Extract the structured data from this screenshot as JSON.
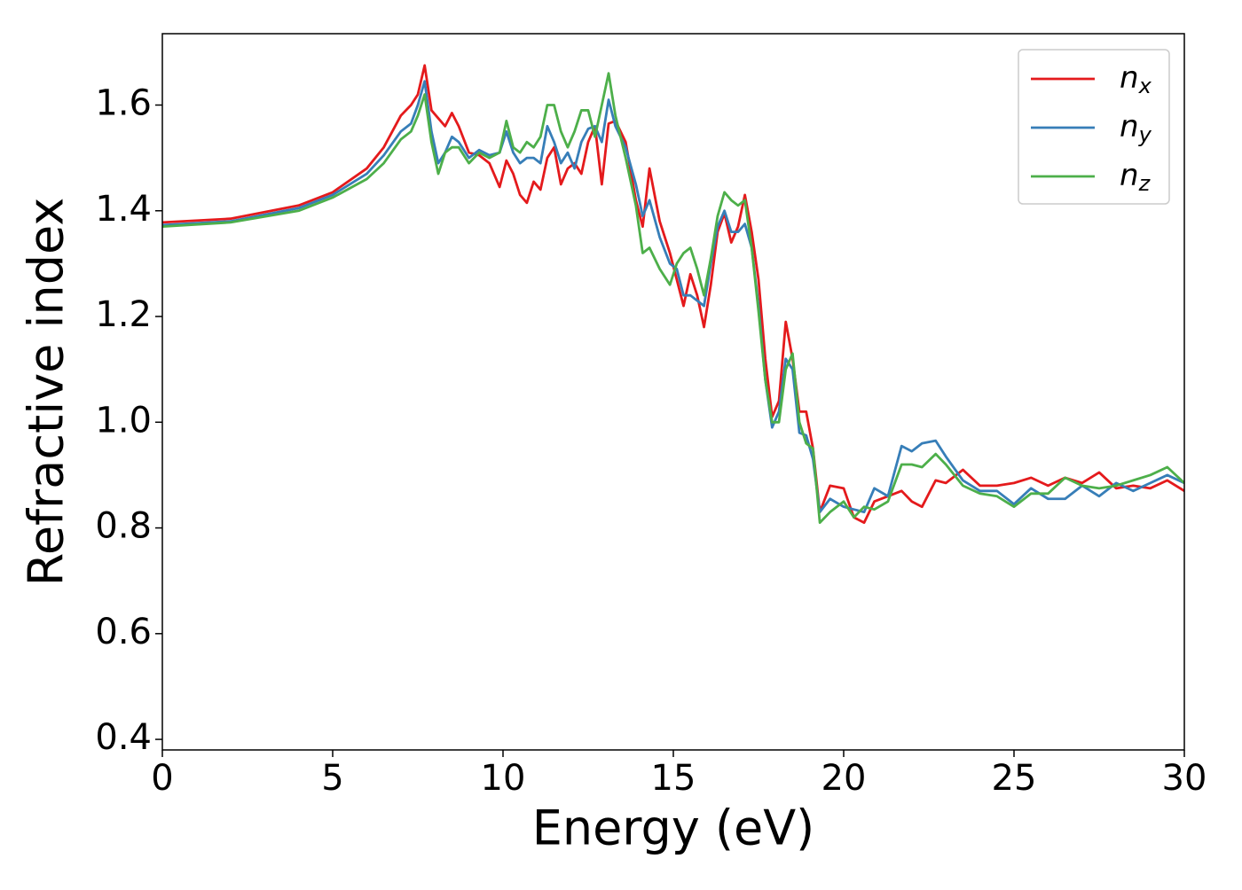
{
  "chart_data": {
    "type": "line",
    "xlabel": "Energy (eV)",
    "ylabel": "Refractive index",
    "x": [
      0,
      2,
      4,
      5,
      6,
      6.5,
      7,
      7.3,
      7.5,
      7.7,
      7.9,
      8.1,
      8.3,
      8.5,
      8.7,
      9,
      9.3,
      9.6,
      9.9,
      10.1,
      10.3,
      10.5,
      10.7,
      10.9,
      11.1,
      11.3,
      11.5,
      11.7,
      11.9,
      12.1,
      12.3,
      12.5,
      12.7,
      12.9,
      13.1,
      13.3,
      13.6,
      13.9,
      14.1,
      14.3,
      14.6,
      14.9,
      15.1,
      15.3,
      15.5,
      15.7,
      15.9,
      16.1,
      16.3,
      16.5,
      16.7,
      16.9,
      17.1,
      17.3,
      17.5,
      17.7,
      17.9,
      18.1,
      18.3,
      18.5,
      18.7,
      18.9,
      19.1,
      19.3,
      19.6,
      20,
      20.3,
      20.6,
      20.9,
      21.3,
      21.7,
      22,
      22.3,
      22.7,
      23,
      23.5,
      24,
      24.5,
      25,
      25.5,
      26,
      26.5,
      27,
      27.5,
      28,
      28.5,
      29,
      29.5,
      30
    ],
    "series": [
      {
        "name": "nx",
        "color": "#e41a1c",
        "values": [
          1.378,
          1.385,
          1.41,
          1.435,
          1.48,
          1.52,
          1.58,
          1.6,
          1.62,
          1.675,
          1.59,
          1.575,
          1.56,
          1.585,
          1.56,
          1.51,
          1.505,
          1.49,
          1.445,
          1.495,
          1.47,
          1.43,
          1.415,
          1.455,
          1.44,
          1.5,
          1.52,
          1.45,
          1.48,
          1.49,
          1.47,
          1.53,
          1.56,
          1.45,
          1.565,
          1.57,
          1.53,
          1.42,
          1.37,
          1.48,
          1.38,
          1.32,
          1.27,
          1.22,
          1.28,
          1.24,
          1.18,
          1.26,
          1.36,
          1.395,
          1.34,
          1.37,
          1.43,
          1.36,
          1.27,
          1.12,
          1.01,
          1.04,
          1.19,
          1.12,
          1.02,
          1.02,
          0.95,
          0.83,
          0.88,
          0.875,
          0.82,
          0.81,
          0.85,
          0.86,
          0.87,
          0.85,
          0.84,
          0.89,
          0.885,
          0.91,
          0.88,
          0.88,
          0.885,
          0.895,
          0.88,
          0.895,
          0.885,
          0.905,
          0.875,
          0.88,
          0.875,
          0.89,
          0.87
        ]
      },
      {
        "name": "ny",
        "color": "#377eb8",
        "values": [
          1.373,
          1.38,
          1.405,
          1.43,
          1.47,
          1.505,
          1.55,
          1.565,
          1.6,
          1.645,
          1.55,
          1.49,
          1.51,
          1.54,
          1.53,
          1.5,
          1.515,
          1.505,
          1.51,
          1.55,
          1.51,
          1.49,
          1.5,
          1.5,
          1.49,
          1.56,
          1.53,
          1.49,
          1.51,
          1.48,
          1.53,
          1.555,
          1.56,
          1.53,
          1.61,
          1.56,
          1.52,
          1.45,
          1.39,
          1.42,
          1.35,
          1.3,
          1.29,
          1.24,
          1.24,
          1.23,
          1.22,
          1.3,
          1.37,
          1.4,
          1.36,
          1.36,
          1.375,
          1.33,
          1.22,
          1.08,
          0.99,
          1.02,
          1.12,
          1.1,
          0.98,
          0.975,
          0.93,
          0.83,
          0.855,
          0.84,
          0.835,
          0.83,
          0.875,
          0.86,
          0.955,
          0.945,
          0.96,
          0.965,
          0.935,
          0.89,
          0.87,
          0.87,
          0.845,
          0.875,
          0.855,
          0.855,
          0.88,
          0.86,
          0.885,
          0.87,
          0.885,
          0.9,
          0.885
        ]
      },
      {
        "name": "nz",
        "color": "#4daf4a",
        "values": [
          1.37,
          1.378,
          1.4,
          1.425,
          1.46,
          1.49,
          1.535,
          1.55,
          1.58,
          1.62,
          1.53,
          1.47,
          1.51,
          1.52,
          1.52,
          1.49,
          1.51,
          1.5,
          1.51,
          1.57,
          1.52,
          1.51,
          1.53,
          1.52,
          1.54,
          1.6,
          1.6,
          1.55,
          1.52,
          1.55,
          1.59,
          1.59,
          1.54,
          1.6,
          1.66,
          1.58,
          1.5,
          1.41,
          1.32,
          1.33,
          1.29,
          1.26,
          1.3,
          1.32,
          1.33,
          1.29,
          1.24,
          1.31,
          1.39,
          1.435,
          1.42,
          1.41,
          1.42,
          1.33,
          1.21,
          1.08,
          1.0,
          1.0,
          1.1,
          1.13,
          1.0,
          0.96,
          0.95,
          0.81,
          0.83,
          0.85,
          0.82,
          0.84,
          0.835,
          0.85,
          0.92,
          0.92,
          0.915,
          0.94,
          0.92,
          0.88,
          0.865,
          0.86,
          0.84,
          0.865,
          0.865,
          0.895,
          0.88,
          0.875,
          0.88,
          0.89,
          0.9,
          0.915,
          0.885
        ]
      }
    ],
    "xlim": [
      0,
      30
    ],
    "ylim": [
      0.38,
      1.735
    ],
    "xticks": [
      0,
      5,
      10,
      15,
      20,
      25,
      30
    ],
    "yticks": [
      0.4,
      0.6,
      0.8,
      {
        "value": 1,
        "label": "1.0"
      },
      1.2,
      1.4,
      1.6
    ],
    "legend": "upper right"
  }
}
